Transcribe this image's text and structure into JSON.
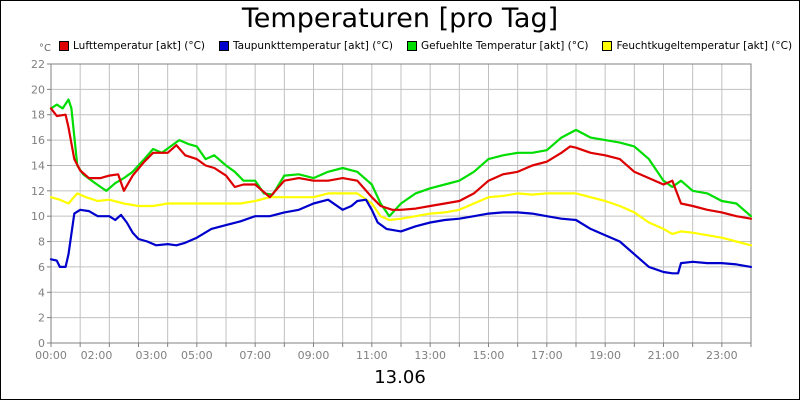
{
  "chart_data": {
    "type": "line",
    "title": "Temperaturen [pro Tag]",
    "ylabel": "°C",
    "xlabel": "13.06",
    "ylim": [
      0,
      22
    ],
    "yticks": [
      0,
      2,
      4,
      6,
      8,
      10,
      12,
      14,
      16,
      18,
      20,
      22
    ],
    "xlim": [
      0,
      24
    ],
    "x_ticks": [
      {
        "t": 0,
        "label": "00:00"
      },
      {
        "t": 2,
        "label": "02:00"
      },
      {
        "t": 3,
        "label": "03:00"
      },
      {
        "t": 5,
        "label": "05:00"
      },
      {
        "t": 7,
        "label": "07:00"
      },
      {
        "t": 9,
        "label": "09:00"
      },
      {
        "t": 11,
        "label": "11:00"
      },
      {
        "t": 13,
        "label": "13:00"
      },
      {
        "t": 15,
        "label": "15:00"
      },
      {
        "t": 17,
        "label": "17:00"
      },
      {
        "t": 19,
        "label": "19:00"
      },
      {
        "t": 21,
        "label": "21:00"
      },
      {
        "t": 23,
        "label": "23:00"
      }
    ],
    "grid": true,
    "series": [
      {
        "name": "Lufttemperatur [akt] (°C)",
        "color": "#dd0000",
        "points": [
          [
            0,
            18.5
          ],
          [
            0.2,
            17.9
          ],
          [
            0.5,
            18.0
          ],
          [
            0.6,
            17.0
          ],
          [
            0.8,
            14.5
          ],
          [
            1.0,
            13.6
          ],
          [
            1.3,
            13.0
          ],
          [
            1.7,
            13.0
          ],
          [
            2.0,
            13.2
          ],
          [
            2.3,
            13.3
          ],
          [
            2.5,
            12.0
          ],
          [
            2.8,
            13.2
          ],
          [
            3.2,
            14.3
          ],
          [
            3.5,
            15.0
          ],
          [
            4.0,
            15.0
          ],
          [
            4.3,
            15.6
          ],
          [
            4.6,
            14.8
          ],
          [
            5.0,
            14.5
          ],
          [
            5.3,
            14.0
          ],
          [
            5.6,
            13.8
          ],
          [
            6.0,
            13.2
          ],
          [
            6.3,
            12.3
          ],
          [
            6.6,
            12.5
          ],
          [
            7.0,
            12.5
          ],
          [
            7.5,
            11.5
          ],
          [
            8.0,
            12.8
          ],
          [
            8.5,
            13.0
          ],
          [
            9.0,
            12.8
          ],
          [
            9.5,
            12.8
          ],
          [
            10.0,
            13.0
          ],
          [
            10.5,
            12.8
          ],
          [
            11.0,
            11.5
          ],
          [
            11.3,
            10.8
          ],
          [
            11.7,
            10.5
          ],
          [
            12.0,
            10.5
          ],
          [
            12.5,
            10.6
          ],
          [
            13.0,
            10.8
          ],
          [
            13.5,
            11.0
          ],
          [
            14.0,
            11.2
          ],
          [
            14.5,
            11.8
          ],
          [
            15.0,
            12.8
          ],
          [
            15.5,
            13.3
          ],
          [
            16.0,
            13.5
          ],
          [
            16.5,
            14.0
          ],
          [
            17.0,
            14.3
          ],
          [
            17.5,
            15.0
          ],
          [
            17.8,
            15.5
          ],
          [
            18.0,
            15.4
          ],
          [
            18.5,
            15.0
          ],
          [
            19.0,
            14.8
          ],
          [
            19.5,
            14.5
          ],
          [
            20.0,
            13.5
          ],
          [
            20.5,
            13.0
          ],
          [
            21.0,
            12.5
          ],
          [
            21.3,
            12.8
          ],
          [
            21.6,
            11.0
          ],
          [
            22.0,
            10.8
          ],
          [
            22.5,
            10.5
          ],
          [
            23.0,
            10.3
          ],
          [
            23.5,
            10.0
          ],
          [
            24.0,
            9.8
          ]
        ]
      },
      {
        "name": "Taupunkttemperatur [akt] (°C)",
        "color": "#0000cc",
        "points": [
          [
            0,
            6.6
          ],
          [
            0.2,
            6.5
          ],
          [
            0.3,
            6.0
          ],
          [
            0.5,
            6.0
          ],
          [
            0.6,
            7.0
          ],
          [
            0.8,
            10.2
          ],
          [
            1.0,
            10.5
          ],
          [
            1.3,
            10.4
          ],
          [
            1.6,
            10.0
          ],
          [
            2.0,
            10.0
          ],
          [
            2.2,
            9.7
          ],
          [
            2.4,
            10.1
          ],
          [
            2.6,
            9.5
          ],
          [
            2.8,
            8.7
          ],
          [
            3.0,
            8.2
          ],
          [
            3.3,
            8.0
          ],
          [
            3.6,
            7.7
          ],
          [
            4.0,
            7.8
          ],
          [
            4.3,
            7.7
          ],
          [
            4.6,
            7.9
          ],
          [
            5.0,
            8.3
          ],
          [
            5.5,
            9.0
          ],
          [
            6.0,
            9.3
          ],
          [
            6.5,
            9.6
          ],
          [
            7.0,
            10.0
          ],
          [
            7.5,
            10.0
          ],
          [
            8.0,
            10.3
          ],
          [
            8.5,
            10.5
          ],
          [
            9.0,
            11.0
          ],
          [
            9.5,
            11.3
          ],
          [
            10.0,
            10.5
          ],
          [
            10.3,
            10.8
          ],
          [
            10.5,
            11.2
          ],
          [
            10.8,
            11.3
          ],
          [
            11.0,
            10.5
          ],
          [
            11.2,
            9.5
          ],
          [
            11.5,
            9.0
          ],
          [
            12.0,
            8.8
          ],
          [
            12.5,
            9.2
          ],
          [
            13.0,
            9.5
          ],
          [
            13.5,
            9.7
          ],
          [
            14.0,
            9.8
          ],
          [
            14.5,
            10.0
          ],
          [
            15.0,
            10.2
          ],
          [
            15.5,
            10.3
          ],
          [
            16.0,
            10.3
          ],
          [
            16.5,
            10.2
          ],
          [
            17.0,
            10.0
          ],
          [
            17.5,
            9.8
          ],
          [
            18.0,
            9.7
          ],
          [
            18.5,
            9.0
          ],
          [
            19.0,
            8.5
          ],
          [
            19.5,
            8.0
          ],
          [
            20.0,
            7.0
          ],
          [
            20.5,
            6.0
          ],
          [
            21.0,
            5.6
          ],
          [
            21.3,
            5.5
          ],
          [
            21.5,
            5.5
          ],
          [
            21.6,
            6.3
          ],
          [
            22.0,
            6.4
          ],
          [
            22.5,
            6.3
          ],
          [
            23.0,
            6.3
          ],
          [
            23.5,
            6.2
          ],
          [
            24.0,
            6.0
          ]
        ]
      },
      {
        "name": "Gefuehlte Temperatur [akt] (°C)",
        "color": "#00dd00",
        "points": [
          [
            0,
            18.5
          ],
          [
            0.2,
            18.8
          ],
          [
            0.4,
            18.5
          ],
          [
            0.6,
            19.2
          ],
          [
            0.7,
            18.5
          ],
          [
            0.9,
            14.0
          ],
          [
            1.1,
            13.3
          ],
          [
            1.4,
            12.8
          ],
          [
            1.7,
            12.3
          ],
          [
            1.9,
            12.0
          ],
          [
            2.2,
            12.6
          ],
          [
            2.5,
            13.0
          ],
          [
            2.8,
            13.5
          ],
          [
            3.2,
            14.5
          ],
          [
            3.5,
            15.3
          ],
          [
            3.8,
            15.0
          ],
          [
            4.1,
            15.5
          ],
          [
            4.4,
            16.0
          ],
          [
            4.7,
            15.7
          ],
          [
            5.0,
            15.5
          ],
          [
            5.3,
            14.5
          ],
          [
            5.6,
            14.8
          ],
          [
            6.0,
            14.0
          ],
          [
            6.3,
            13.5
          ],
          [
            6.6,
            12.8
          ],
          [
            7.0,
            12.8
          ],
          [
            7.3,
            11.8
          ],
          [
            7.6,
            11.7
          ],
          [
            8.0,
            13.2
          ],
          [
            8.5,
            13.3
          ],
          [
            9.0,
            13.0
          ],
          [
            9.5,
            13.5
          ],
          [
            10.0,
            13.8
          ],
          [
            10.5,
            13.5
          ],
          [
            11.0,
            12.5
          ],
          [
            11.3,
            11.0
          ],
          [
            11.6,
            10.0
          ],
          [
            12.0,
            11.0
          ],
          [
            12.5,
            11.8
          ],
          [
            13.0,
            12.2
          ],
          [
            13.5,
            12.5
          ],
          [
            14.0,
            12.8
          ],
          [
            14.5,
            13.5
          ],
          [
            15.0,
            14.5
          ],
          [
            15.5,
            14.8
          ],
          [
            16.0,
            15.0
          ],
          [
            16.5,
            15.0
          ],
          [
            17.0,
            15.2
          ],
          [
            17.5,
            16.2
          ],
          [
            18.0,
            16.8
          ],
          [
            18.5,
            16.2
          ],
          [
            19.0,
            16.0
          ],
          [
            19.5,
            15.8
          ],
          [
            20.0,
            15.5
          ],
          [
            20.5,
            14.5
          ],
          [
            21.0,
            12.8
          ],
          [
            21.3,
            12.3
          ],
          [
            21.6,
            12.8
          ],
          [
            22.0,
            12.0
          ],
          [
            22.5,
            11.8
          ],
          [
            23.0,
            11.2
          ],
          [
            23.5,
            11.0
          ],
          [
            24.0,
            10.0
          ]
        ]
      },
      {
        "name": "Feuchtkugeltemperatur [akt] (°C)",
        "color": "#ffff00",
        "points": [
          [
            0,
            11.5
          ],
          [
            0.3,
            11.3
          ],
          [
            0.6,
            11.0
          ],
          [
            0.9,
            11.8
          ],
          [
            1.2,
            11.5
          ],
          [
            1.6,
            11.2
          ],
          [
            2.0,
            11.3
          ],
          [
            2.5,
            11.0
          ],
          [
            3.0,
            10.8
          ],
          [
            3.5,
            10.8
          ],
          [
            4.0,
            11.0
          ],
          [
            4.5,
            11.0
          ],
          [
            5.0,
            11.0
          ],
          [
            5.5,
            11.0
          ],
          [
            6.0,
            11.0
          ],
          [
            6.5,
            11.0
          ],
          [
            7.0,
            11.2
          ],
          [
            7.5,
            11.5
          ],
          [
            8.0,
            11.5
          ],
          [
            8.5,
            11.5
          ],
          [
            9.0,
            11.5
          ],
          [
            9.5,
            11.8
          ],
          [
            10.0,
            11.8
          ],
          [
            10.5,
            11.8
          ],
          [
            11.0,
            11.0
          ],
          [
            11.3,
            10.0
          ],
          [
            11.6,
            9.7
          ],
          [
            12.0,
            9.8
          ],
          [
            12.5,
            10.0
          ],
          [
            13.0,
            10.2
          ],
          [
            13.5,
            10.3
          ],
          [
            14.0,
            10.5
          ],
          [
            14.5,
            11.0
          ],
          [
            15.0,
            11.5
          ],
          [
            15.5,
            11.6
          ],
          [
            16.0,
            11.8
          ],
          [
            16.5,
            11.7
          ],
          [
            17.0,
            11.8
          ],
          [
            17.5,
            11.8
          ],
          [
            18.0,
            11.8
          ],
          [
            18.5,
            11.5
          ],
          [
            19.0,
            11.2
          ],
          [
            19.5,
            10.8
          ],
          [
            20.0,
            10.3
          ],
          [
            20.5,
            9.5
          ],
          [
            21.0,
            9.0
          ],
          [
            21.3,
            8.6
          ],
          [
            21.6,
            8.8
          ],
          [
            22.0,
            8.7
          ],
          [
            22.5,
            8.5
          ],
          [
            23.0,
            8.3
          ],
          [
            23.5,
            8.0
          ],
          [
            24.0,
            7.7
          ]
        ]
      }
    ]
  }
}
